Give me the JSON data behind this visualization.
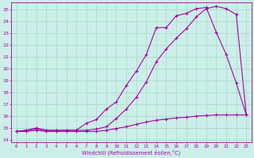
{
  "xlabel": "Windchill (Refroidissement éolien,°C)",
  "background_color": "#cceee8",
  "grid_color": "#aaddcc",
  "line_color": "#aa00aa",
  "xlim": [
    -0.5,
    23.5
  ],
  "ylim": [
    13.8,
    25.6
  ],
  "yticks": [
    14,
    15,
    16,
    17,
    18,
    19,
    20,
    21,
    22,
    23,
    24,
    25
  ],
  "xticks": [
    0,
    1,
    2,
    3,
    4,
    5,
    6,
    7,
    8,
    9,
    10,
    11,
    12,
    13,
    14,
    15,
    16,
    17,
    18,
    19,
    20,
    21,
    22,
    23
  ],
  "curve1_x": [
    0,
    1,
    2,
    3,
    4,
    5,
    6,
    7,
    8,
    9,
    10,
    11,
    12,
    13,
    14,
    15,
    16,
    17,
    18,
    19,
    20,
    21,
    22,
    23
  ],
  "curve1_y": [
    14.7,
    14.8,
    14.9,
    14.8,
    14.8,
    14.8,
    14.8,
    15.4,
    15.7,
    16.6,
    17.2,
    18.6,
    19.8,
    21.2,
    23.5,
    23.5,
    24.5,
    24.7,
    25.1,
    25.2,
    23.1,
    21.2,
    18.8,
    16.1
  ],
  "curve2_x": [
    0,
    1,
    2,
    3,
    4,
    5,
    6,
    7,
    8,
    9,
    10,
    11,
    12,
    13,
    14,
    15,
    16,
    17,
    18,
    19,
    20,
    21,
    22,
    23
  ],
  "curve2_y": [
    14.7,
    14.8,
    15.0,
    14.8,
    14.8,
    14.8,
    14.8,
    14.8,
    14.9,
    15.1,
    15.8,
    16.6,
    17.6,
    18.9,
    20.6,
    21.7,
    22.6,
    23.4,
    24.4,
    25.1,
    25.3,
    25.1,
    24.6,
    16.1
  ],
  "curve3_x": [
    0,
    1,
    2,
    3,
    4,
    5,
    6,
    7,
    8,
    9,
    10,
    11,
    12,
    13,
    14,
    15,
    16,
    17,
    18,
    19,
    20,
    21,
    22,
    23
  ],
  "curve3_y": [
    14.7,
    14.7,
    14.8,
    14.7,
    14.7,
    14.7,
    14.7,
    14.7,
    14.7,
    14.8,
    14.95,
    15.1,
    15.3,
    15.5,
    15.65,
    15.75,
    15.85,
    15.9,
    16.0,
    16.05,
    16.1,
    16.1,
    16.1,
    16.1
  ]
}
